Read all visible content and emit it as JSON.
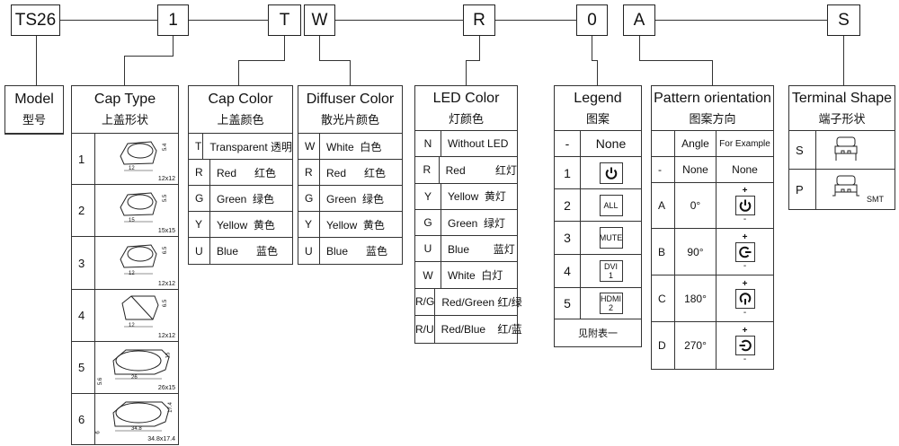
{
  "codes": [
    "TS26",
    "1",
    "T",
    "W",
    "R",
    "0",
    "A",
    "S"
  ],
  "model": {
    "title": "Model",
    "title_cn": "型号"
  },
  "cap_type": {
    "title": "Cap Type",
    "title_cn": "上盖形状",
    "rows": [
      {
        "code": "1",
        "size": "12x12",
        "dims": [
          "12",
          "5.4"
        ]
      },
      {
        "code": "2",
        "size": "15x15",
        "dims": [
          "15",
          "5.5"
        ]
      },
      {
        "code": "3",
        "size": "12x12",
        "dims": [
          "12",
          "6.5"
        ]
      },
      {
        "code": "4",
        "size": "12x12",
        "dims": [
          "12",
          "6.5"
        ]
      },
      {
        "code": "5",
        "size": "26x15",
        "dims": [
          "26",
          "15",
          "5.6"
        ]
      },
      {
        "code": "6",
        "size": "34.8x17.4",
        "dims": [
          "34.8",
          "17.4",
          "6"
        ]
      }
    ]
  },
  "cap_color": {
    "title": "Cap Color",
    "title_cn": "上盖颜色",
    "rows": [
      [
        "T",
        "Transparent 透明"
      ],
      [
        "R",
        "Red      红色"
      ],
      [
        "G",
        "Green  绿色"
      ],
      [
        "Y",
        "Yellow  黄色"
      ],
      [
        "U",
        "Blue      蓝色"
      ]
    ]
  },
  "diffuser_color": {
    "title": "Diffuser Color",
    "title_cn": "散光片颜色",
    "rows": [
      [
        "W",
        "White  白色"
      ],
      [
        "R",
        "Red      红色"
      ],
      [
        "G",
        "Green  绿色"
      ],
      [
        "Y",
        "Yellow  黄色"
      ],
      [
        "U",
        "Blue      蓝色"
      ]
    ]
  },
  "led_color": {
    "title": "LED Color",
    "title_cn": "灯颜色",
    "rows": [
      [
        "N",
        "Without LED"
      ],
      [
        "R",
        "Red          红灯"
      ],
      [
        "Y",
        "Yellow  黄灯"
      ],
      [
        "G",
        "Green  绿灯"
      ],
      [
        "U",
        "Blue        蓝灯"
      ],
      [
        "W",
        "White  白灯"
      ],
      [
        "R/G",
        "Red/Green 红/绿"
      ],
      [
        "R/U",
        "Red/Blue    红/蓝"
      ]
    ]
  },
  "legend": {
    "title": "Legend",
    "title_cn": "图案",
    "rows": [
      {
        "code": "-",
        "label": "None"
      },
      {
        "code": "1",
        "icon": "power-icon"
      },
      {
        "code": "2",
        "key": "ALL"
      },
      {
        "code": "3",
        "key": "MUTE"
      },
      {
        "code": "4",
        "key": "DVI\n1"
      },
      {
        "code": "5",
        "key": "HDMI\n2"
      }
    ],
    "footer": "见附表一"
  },
  "pattern": {
    "title": "Pattern orientation",
    "title_cn": "图案方向",
    "col_angle": "Angle",
    "col_example": "For Example",
    "none_row": [
      "-",
      "None",
      "None"
    ],
    "rows": [
      {
        "code": "A",
        "angle": "0°",
        "rot": 0
      },
      {
        "code": "B",
        "angle": "90°",
        "rot": 90
      },
      {
        "code": "C",
        "angle": "180°",
        "rot": 180
      },
      {
        "code": "D",
        "angle": "270°",
        "rot": 270
      }
    ],
    "plus": "+",
    "minus": "-"
  },
  "terminal": {
    "title": "Terminal Shape",
    "title_cn": "端子形状",
    "rows": [
      {
        "code": "S",
        "note": ""
      },
      {
        "code": "P",
        "note": "SMT"
      }
    ]
  }
}
